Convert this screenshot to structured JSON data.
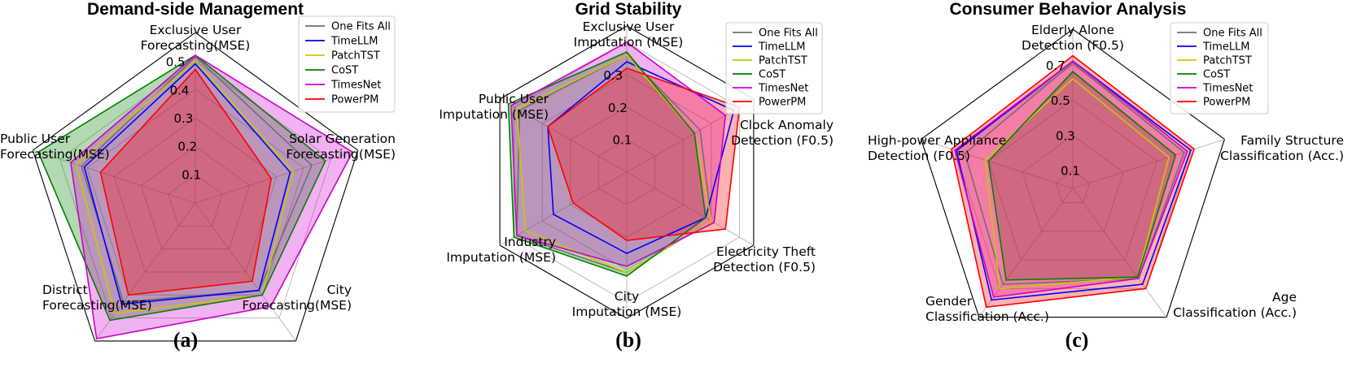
{
  "chart_data": [
    {
      "type": "radar",
      "title": "Demand-side Management",
      "subfigure_label": "(a)",
      "axes": [
        [
          "Exclusive User",
          "Forecasting(MSE)"
        ],
        [
          "Solar Generation",
          "Forecasting(MSE)"
        ],
        [
          "City",
          "Forecasting(MSE)"
        ],
        [
          "District",
          "Forecasting(MSE)"
        ],
        [
          "Public User",
          "Forecasting(MSE)"
        ]
      ],
      "rmax": 0.6,
      "ticks": [
        0.1,
        0.2,
        0.3,
        0.4,
        0.5
      ],
      "tick_labels": [
        "0.1",
        "0.2",
        "0.3",
        "0.4",
        "0.5"
      ],
      "series": [
        {
          "name": "One Fits All",
          "color": "#707070",
          "values": [
            0.515,
            0.43,
            0.38,
            0.43,
            0.42
          ],
          "fill": false
        },
        {
          "name": "TimeLLM",
          "color": "#0000ff",
          "values": [
            0.49,
            0.35,
            0.38,
            0.44,
            0.41
          ],
          "fill": false
        },
        {
          "name": "PatchTST",
          "color": "#c8c800",
          "values": [
            0.5,
            0.36,
            0.4,
            0.48,
            0.44
          ],
          "fill": false
        },
        {
          "name": "CoST",
          "color": "#008000",
          "values": [
            0.52,
            0.48,
            0.4,
            0.51,
            0.58
          ],
          "fill": true
        },
        {
          "name": "TimesNet",
          "color": "#cc00cc",
          "values": [
            0.52,
            0.58,
            0.45,
            0.59,
            0.46
          ],
          "fill": true
        },
        {
          "name": "PowerPM",
          "color": "#ff0000",
          "values": [
            0.47,
            0.28,
            0.34,
            0.4,
            0.35
          ],
          "fill": true
        }
      ],
      "legend_position": "top-right"
    },
    {
      "type": "radar",
      "title": "Grid Stability",
      "subfigure_label": "(b)",
      "axes": [
        [
          "Exclusive User",
          "Imputation (MSE)"
        ],
        [
          "Clock Anomaly",
          "Detection (F0.5)"
        ],
        [
          "Electricity Theft",
          "Detection (F0.5)"
        ],
        [
          "City",
          "Imputation (MSE)"
        ],
        [
          "Industry",
          "Imputation (MSE)"
        ],
        [
          "Public User",
          "Imputation (MSE)"
        ]
      ],
      "rmax": 0.45,
      "ticks": [
        0.1,
        0.2,
        0.3,
        0.4
      ],
      "tick_labels": [
        "0.1",
        "0.2",
        "0.3",
        ""
      ],
      "series": [
        {
          "name": "One Fits All",
          "color": "#707070",
          "values": [
            0.36,
            0.26,
            0.3,
            0.31,
            0.39,
            0.38
          ],
          "fill": false
        },
        {
          "name": "TimeLLM",
          "color": "#0000ff",
          "values": [
            0.34,
            0.38,
            0.28,
            0.25,
            0.26,
            0.28
          ],
          "fill": false
        },
        {
          "name": "PatchTST",
          "color": "#c8c800",
          "values": [
            0.36,
            0.24,
            0.3,
            0.31,
            0.36,
            0.39
          ],
          "fill": false
        },
        {
          "name": "CoST",
          "color": "#008000",
          "values": [
            0.37,
            0.24,
            0.28,
            0.32,
            0.4,
            0.42
          ],
          "fill": true
        },
        {
          "name": "TimesNet",
          "color": "#cc00cc",
          "values": [
            0.4,
            0.35,
            0.31,
            0.29,
            0.39,
            0.41
          ],
          "fill": true
        },
        {
          "name": "PowerPM",
          "color": "#ff0000",
          "values": [
            0.32,
            0.4,
            0.35,
            0.21,
            0.19,
            0.28
          ],
          "fill": true
        }
      ],
      "legend_position": "top-right"
    },
    {
      "type": "radar",
      "title": "Consumer Behavior Analysis",
      "subfigure_label": "(c)",
      "axes": [
        [
          "Elderly Alone",
          "Detection (F0.5)"
        ],
        [
          "Family Structure",
          "Classification (Acc.)"
        ],
        [
          "Age",
          "Classification (Acc.)"
        ],
        [
          "Gender",
          "Classification (Acc.)"
        ],
        [
          "High-power Appliance",
          "Detection (F0.5)"
        ]
      ],
      "rmax": 0.9,
      "ticks": [
        0.1,
        0.3,
        0.5,
        0.7,
        0.9
      ],
      "tick_labels": [
        "0.1",
        "0.3",
        "0.5",
        "0.7",
        ""
      ],
      "series": [
        {
          "name": "One Fits All",
          "color": "#707070",
          "values": [
            0.71,
            0.66,
            0.63,
            0.67,
            0.64
          ],
          "fill": false
        },
        {
          "name": "TimeLLM",
          "color": "#0000ff",
          "values": [
            0.72,
            0.7,
            0.67,
            0.78,
            0.69
          ],
          "fill": false
        },
        {
          "name": "PatchTST",
          "color": "#c8c800",
          "values": [
            0.62,
            0.57,
            0.62,
            0.7,
            0.52
          ],
          "fill": false
        },
        {
          "name": "CoST",
          "color": "#008000",
          "values": [
            0.66,
            0.61,
            0.62,
            0.64,
            0.5
          ],
          "fill": true
        },
        {
          "name": "TimesNet",
          "color": "#cc00cc",
          "values": [
            0.72,
            0.68,
            0.63,
            0.76,
            0.7
          ],
          "fill": true
        },
        {
          "name": "PowerPM",
          "color": "#ff0000",
          "values": [
            0.75,
            0.72,
            0.7,
            0.83,
            0.72
          ],
          "fill": true
        }
      ],
      "legend_position": "top-right"
    }
  ]
}
